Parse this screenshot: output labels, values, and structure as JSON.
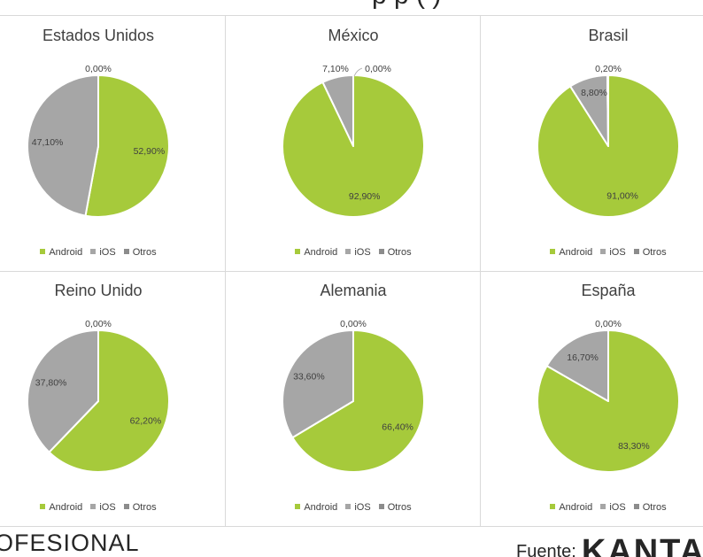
{
  "header": {
    "title_fragment": "p p ( )"
  },
  "legend": {
    "labels": [
      "Android",
      "iOS",
      "Otros"
    ]
  },
  "colors": {
    "android": "#a6ca3b",
    "ios": "#a6a6a6",
    "otros": "#7f7f7f",
    "legend_android": "#a6ca3b",
    "legend_ios": "#a6a6a6",
    "legend_otros": "#8c8c8c"
  },
  "footer": {
    "left_text": "OFESIONAL",
    "source_label": "Fuente:",
    "brand": "KANTA"
  },
  "chart_data": [
    {
      "type": "pie",
      "title": "Estados Unidos",
      "categories": [
        "Android",
        "iOS",
        "Otros"
      ],
      "values": [
        52.9,
        47.1,
        0.0
      ],
      "data_labels": [
        "52,90%",
        "47,10%",
        "0,00%"
      ],
      "legend": "bottom"
    },
    {
      "type": "pie",
      "title": "México",
      "categories": [
        "Android",
        "iOS",
        "Otros"
      ],
      "values": [
        92.9,
        7.1,
        0.0
      ],
      "data_labels": [
        "92,90%",
        "7,10%",
        "0,00%"
      ],
      "legend": "bottom"
    },
    {
      "type": "pie",
      "title": "Brasil",
      "categories": [
        "Android",
        "iOS",
        "Otros"
      ],
      "values": [
        91.0,
        8.8,
        0.2
      ],
      "data_labels": [
        "91,00%",
        "8,80%",
        "0,20%"
      ],
      "legend": "bottom"
    },
    {
      "type": "pie",
      "title": "Reino Unido",
      "categories": [
        "Android",
        "iOS",
        "Otros"
      ],
      "values": [
        62.2,
        37.8,
        0.0
      ],
      "data_labels": [
        "62,20%",
        "37,80%",
        "0,00%"
      ],
      "legend": "bottom"
    },
    {
      "type": "pie",
      "title": "Alemania",
      "categories": [
        "Android",
        "iOS",
        "Otros"
      ],
      "values": [
        66.4,
        33.6,
        0.0
      ],
      "data_labels": [
        "66,40%",
        "33,60%",
        "0,00%"
      ],
      "legend": "bottom"
    },
    {
      "type": "pie",
      "title": "España",
      "categories": [
        "Android",
        "iOS",
        "Otros"
      ],
      "values": [
        83.3,
        16.7,
        0.0
      ],
      "data_labels": [
        "83,30%",
        "16,70%",
        "0,00%"
      ],
      "legend": "bottom"
    }
  ]
}
